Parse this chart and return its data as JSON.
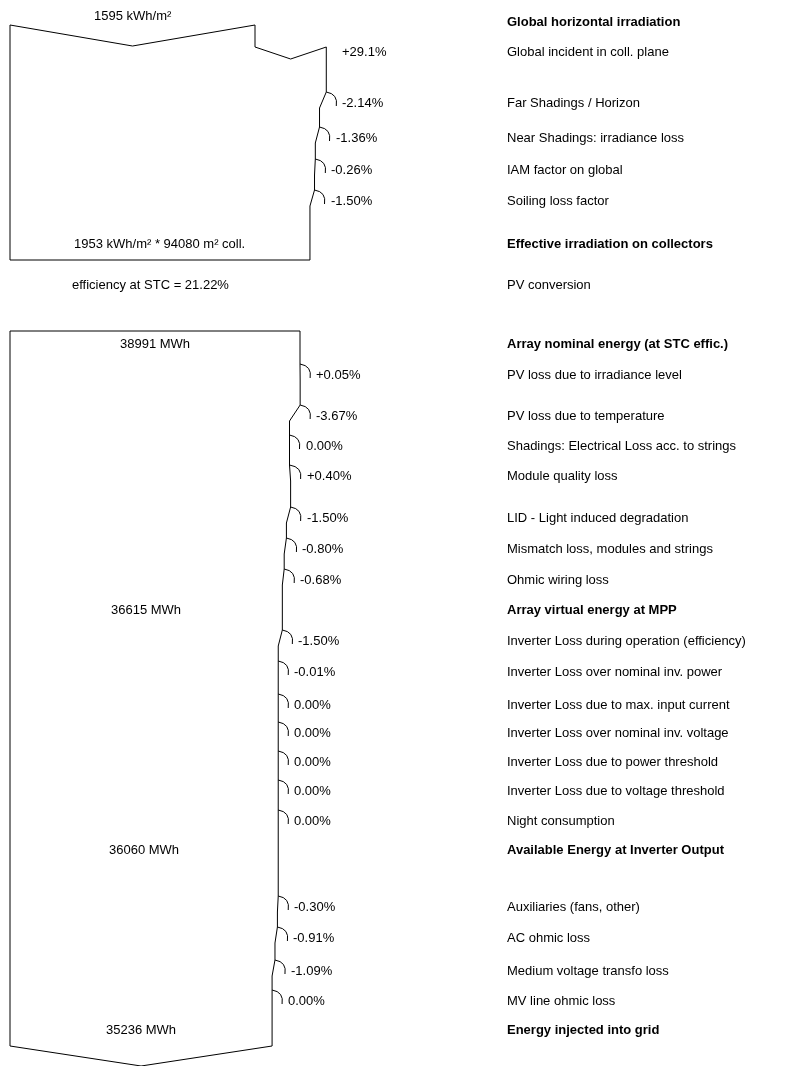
{
  "chart_data": {
    "type": "other",
    "categories": [
      "Global horizontal irradiation",
      "Global incident in coll. plane",
      "Far Shadings / Horizon",
      "Near Shadings: irradiance loss",
      "IAM factor on global",
      "Soiling loss factor",
      "Effective irradiation on collectors",
      "PV conversion",
      "Array nominal energy (at STC effic.)",
      "PV loss due to irradiance level",
      "PV loss due to temperature",
      "Shadings: Electrical Loss acc. to strings",
      "Module quality loss",
      "LID - Light induced degradation",
      "Mismatch loss, modules and strings",
      "Ohmic wiring loss",
      "Array virtual energy at MPP",
      "Inverter Loss during operation (efficiency)",
      "Inverter Loss over nominal inv. power",
      "Inverter Loss due to max. input current",
      "Inverter Loss over nominal inv. voltage",
      "Inverter Loss due to power threshold",
      "Inverter Loss due to voltage threshold",
      "Night consumption",
      "Available Energy at Inverter Output",
      "Auxiliaries (fans, other)",
      "AC ohmic loss",
      "Medium voltage transfo loss",
      "MV line ohmic loss",
      "Energy injected into grid"
    ],
    "series": [
      {
        "color": "#000000",
        "values": [
          1595,
          null,
          null,
          null,
          null,
          null,
          1953,
          null,
          38991,
          null,
          null,
          null,
          null,
          null,
          null,
          null,
          36615,
          null,
          null,
          null,
          null,
          null,
          null,
          null,
          36060,
          null,
          null,
          null,
          null,
          35236
        ],
        "value_labels": [
          "1595 kWh/m²",
          null,
          null,
          null,
          null,
          null,
          "1953 kWh/m² * 94080 m² coll.",
          null,
          "38991 MWh",
          null,
          null,
          null,
          null,
          null,
          null,
          null,
          "36615 MWh",
          null,
          null,
          null,
          null,
          null,
          null,
          null,
          "36060 MWh",
          null,
          null,
          null,
          null,
          "35236 MWh"
        ]
      },
      {
        "color": "#000000",
        "values": [
          null,
          29.1,
          -2.14,
          -1.36,
          -0.26,
          -1.5,
          null,
          null,
          null,
          0.05,
          -3.67,
          0.0,
          0.4,
          -1.5,
          -0.8,
          -0.68,
          null,
          -1.5,
          -0.01,
          0.0,
          0.0,
          0.0,
          0.0,
          0.0,
          null,
          -0.3,
          -0.91,
          -1.09,
          0.0,
          null
        ],
        "value_labels": [
          null,
          "+29.1%",
          "-2.14%",
          "-1.36%",
          "-0.26%",
          "-1.50%",
          null,
          null,
          null,
          "+0.05%",
          "-3.67%",
          "0.00%",
          "+0.40%",
          "-1.50%",
          "-0.80%",
          "-0.68%",
          null,
          "-1.50%",
          "-0.01%",
          "0.00%",
          "0.00%",
          "0.00%",
          "0.00%",
          "0.00%",
          null,
          "-0.30%",
          "-0.91%",
          "-1.09%",
          "0.00%",
          null
        ]
      }
    ],
    "annotations": [
      "efficiency at STC = 21.22%"
    ]
  }
}
